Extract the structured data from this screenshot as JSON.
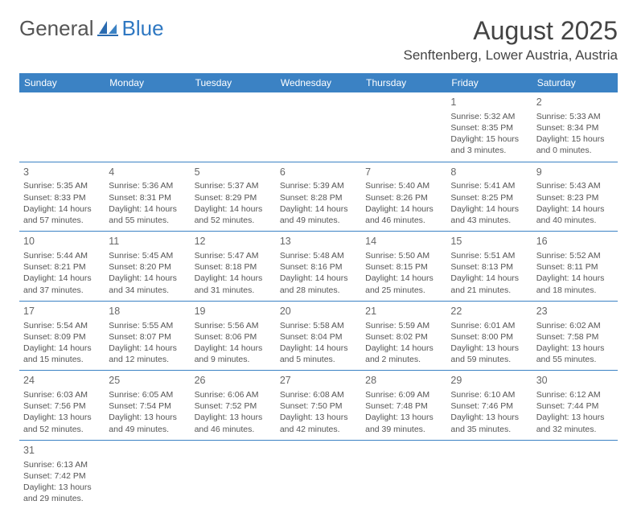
{
  "logo": {
    "general": "General",
    "blue": "Blue"
  },
  "title": "August 2025",
  "location": "Senftenberg, Lower Austria, Austria",
  "colors": {
    "header_bg": "#3b82c4",
    "header_text": "#ffffff",
    "border": "#3b82c4",
    "text": "#555555",
    "logo_gray": "#555555",
    "logo_blue": "#2f78c2"
  },
  "weekdays": [
    "Sunday",
    "Monday",
    "Tuesday",
    "Wednesday",
    "Thursday",
    "Friday",
    "Saturday"
  ],
  "weeks": [
    [
      null,
      null,
      null,
      null,
      null,
      {
        "n": "1",
        "sr": "Sunrise: 5:32 AM",
        "ss": "Sunset: 8:35 PM",
        "dl": "Daylight: 15 hours and 3 minutes."
      },
      {
        "n": "2",
        "sr": "Sunrise: 5:33 AM",
        "ss": "Sunset: 8:34 PM",
        "dl": "Daylight: 15 hours and 0 minutes."
      }
    ],
    [
      {
        "n": "3",
        "sr": "Sunrise: 5:35 AM",
        "ss": "Sunset: 8:33 PM",
        "dl": "Daylight: 14 hours and 57 minutes."
      },
      {
        "n": "4",
        "sr": "Sunrise: 5:36 AM",
        "ss": "Sunset: 8:31 PM",
        "dl": "Daylight: 14 hours and 55 minutes."
      },
      {
        "n": "5",
        "sr": "Sunrise: 5:37 AM",
        "ss": "Sunset: 8:29 PM",
        "dl": "Daylight: 14 hours and 52 minutes."
      },
      {
        "n": "6",
        "sr": "Sunrise: 5:39 AM",
        "ss": "Sunset: 8:28 PM",
        "dl": "Daylight: 14 hours and 49 minutes."
      },
      {
        "n": "7",
        "sr": "Sunrise: 5:40 AM",
        "ss": "Sunset: 8:26 PM",
        "dl": "Daylight: 14 hours and 46 minutes."
      },
      {
        "n": "8",
        "sr": "Sunrise: 5:41 AM",
        "ss": "Sunset: 8:25 PM",
        "dl": "Daylight: 14 hours and 43 minutes."
      },
      {
        "n": "9",
        "sr": "Sunrise: 5:43 AM",
        "ss": "Sunset: 8:23 PM",
        "dl": "Daylight: 14 hours and 40 minutes."
      }
    ],
    [
      {
        "n": "10",
        "sr": "Sunrise: 5:44 AM",
        "ss": "Sunset: 8:21 PM",
        "dl": "Daylight: 14 hours and 37 minutes."
      },
      {
        "n": "11",
        "sr": "Sunrise: 5:45 AM",
        "ss": "Sunset: 8:20 PM",
        "dl": "Daylight: 14 hours and 34 minutes."
      },
      {
        "n": "12",
        "sr": "Sunrise: 5:47 AM",
        "ss": "Sunset: 8:18 PM",
        "dl": "Daylight: 14 hours and 31 minutes."
      },
      {
        "n": "13",
        "sr": "Sunrise: 5:48 AM",
        "ss": "Sunset: 8:16 PM",
        "dl": "Daylight: 14 hours and 28 minutes."
      },
      {
        "n": "14",
        "sr": "Sunrise: 5:50 AM",
        "ss": "Sunset: 8:15 PM",
        "dl": "Daylight: 14 hours and 25 minutes."
      },
      {
        "n": "15",
        "sr": "Sunrise: 5:51 AM",
        "ss": "Sunset: 8:13 PM",
        "dl": "Daylight: 14 hours and 21 minutes."
      },
      {
        "n": "16",
        "sr": "Sunrise: 5:52 AM",
        "ss": "Sunset: 8:11 PM",
        "dl": "Daylight: 14 hours and 18 minutes."
      }
    ],
    [
      {
        "n": "17",
        "sr": "Sunrise: 5:54 AM",
        "ss": "Sunset: 8:09 PM",
        "dl": "Daylight: 14 hours and 15 minutes."
      },
      {
        "n": "18",
        "sr": "Sunrise: 5:55 AM",
        "ss": "Sunset: 8:07 PM",
        "dl": "Daylight: 14 hours and 12 minutes."
      },
      {
        "n": "19",
        "sr": "Sunrise: 5:56 AM",
        "ss": "Sunset: 8:06 PM",
        "dl": "Daylight: 14 hours and 9 minutes."
      },
      {
        "n": "20",
        "sr": "Sunrise: 5:58 AM",
        "ss": "Sunset: 8:04 PM",
        "dl": "Daylight: 14 hours and 5 minutes."
      },
      {
        "n": "21",
        "sr": "Sunrise: 5:59 AM",
        "ss": "Sunset: 8:02 PM",
        "dl": "Daylight: 14 hours and 2 minutes."
      },
      {
        "n": "22",
        "sr": "Sunrise: 6:01 AM",
        "ss": "Sunset: 8:00 PM",
        "dl": "Daylight: 13 hours and 59 minutes."
      },
      {
        "n": "23",
        "sr": "Sunrise: 6:02 AM",
        "ss": "Sunset: 7:58 PM",
        "dl": "Daylight: 13 hours and 55 minutes."
      }
    ],
    [
      {
        "n": "24",
        "sr": "Sunrise: 6:03 AM",
        "ss": "Sunset: 7:56 PM",
        "dl": "Daylight: 13 hours and 52 minutes."
      },
      {
        "n": "25",
        "sr": "Sunrise: 6:05 AM",
        "ss": "Sunset: 7:54 PM",
        "dl": "Daylight: 13 hours and 49 minutes."
      },
      {
        "n": "26",
        "sr": "Sunrise: 6:06 AM",
        "ss": "Sunset: 7:52 PM",
        "dl": "Daylight: 13 hours and 46 minutes."
      },
      {
        "n": "27",
        "sr": "Sunrise: 6:08 AM",
        "ss": "Sunset: 7:50 PM",
        "dl": "Daylight: 13 hours and 42 minutes."
      },
      {
        "n": "28",
        "sr": "Sunrise: 6:09 AM",
        "ss": "Sunset: 7:48 PM",
        "dl": "Daylight: 13 hours and 39 minutes."
      },
      {
        "n": "29",
        "sr": "Sunrise: 6:10 AM",
        "ss": "Sunset: 7:46 PM",
        "dl": "Daylight: 13 hours and 35 minutes."
      },
      {
        "n": "30",
        "sr": "Sunrise: 6:12 AM",
        "ss": "Sunset: 7:44 PM",
        "dl": "Daylight: 13 hours and 32 minutes."
      }
    ],
    [
      {
        "n": "31",
        "sr": "Sunrise: 6:13 AM",
        "ss": "Sunset: 7:42 PM",
        "dl": "Daylight: 13 hours and 29 minutes."
      },
      null,
      null,
      null,
      null,
      null,
      null
    ]
  ]
}
